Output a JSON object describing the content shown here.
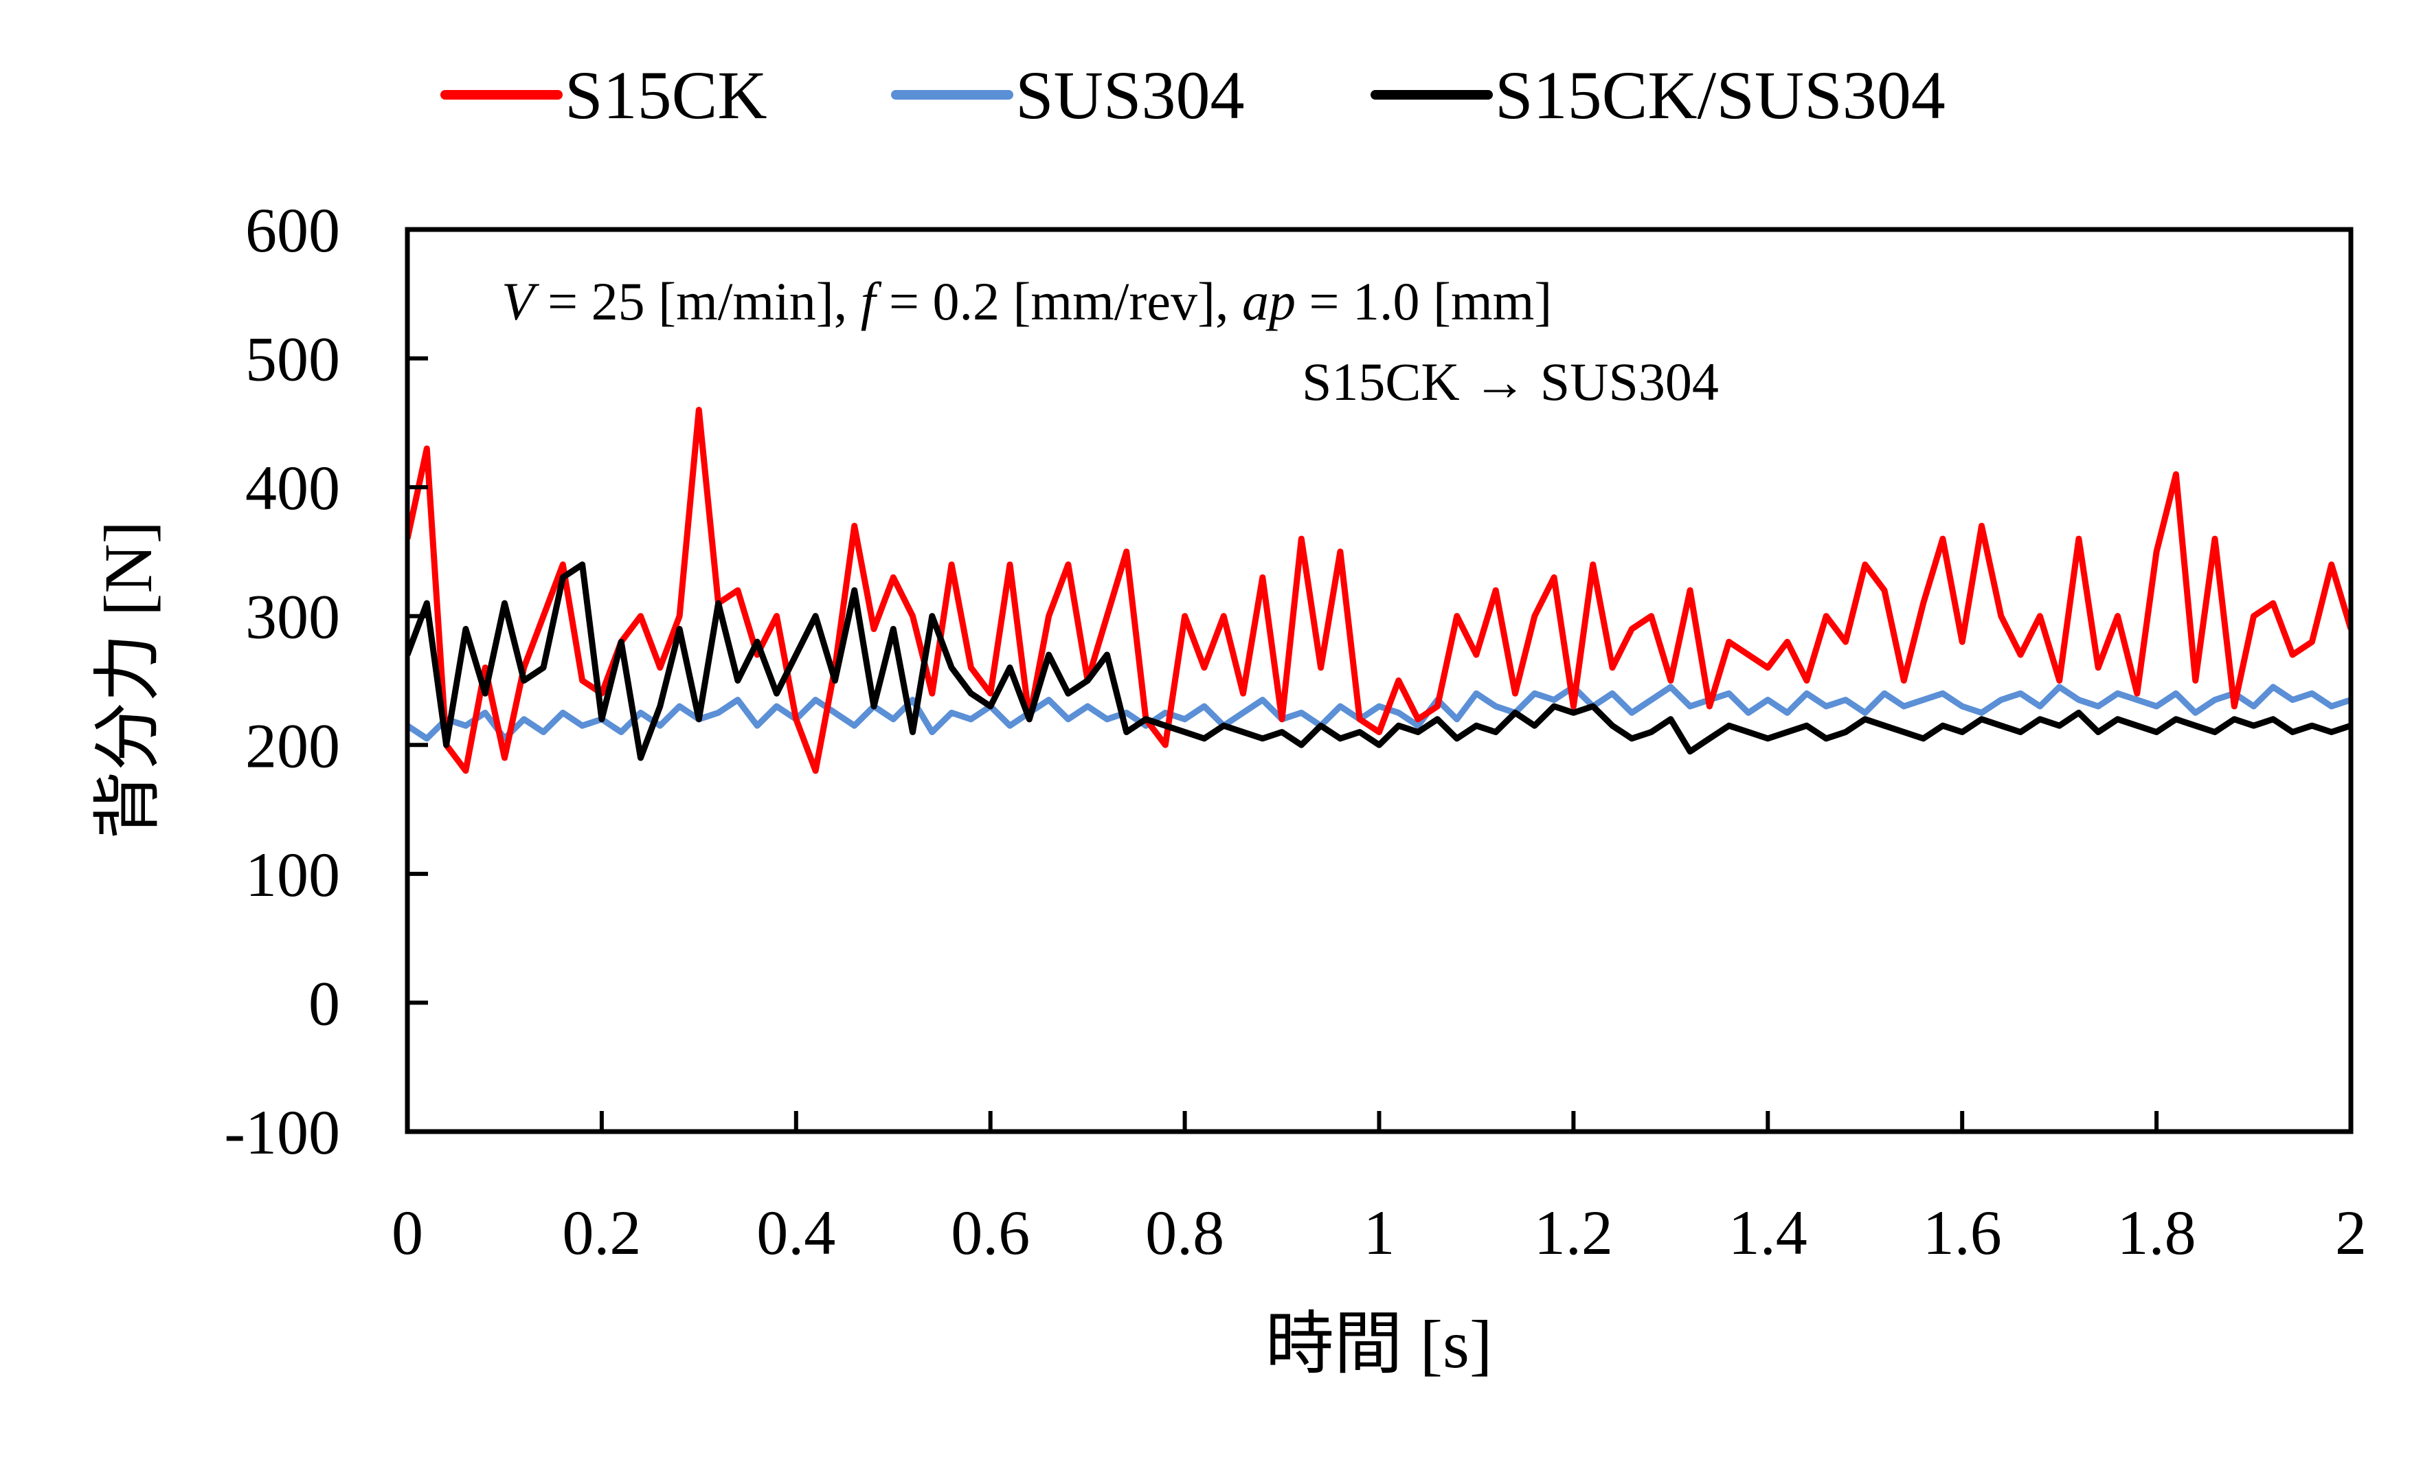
{
  "chart_data": {
    "type": "line",
    "title": "",
    "xlabel": "時間 [s]",
    "ylabel": "背分力 [N]",
    "xlim": [
      0,
      2
    ],
    "ylim": [
      -100,
      600
    ],
    "xticks": [
      0,
      0.2,
      0.4,
      0.6,
      0.8,
      1,
      1.2,
      1.4,
      1.6,
      1.8,
      2
    ],
    "xtick_labels": [
      "0",
      "0.2",
      "0.4",
      "0.6",
      "0.8",
      "1",
      "1.2",
      "1.4",
      "1.6",
      "1.8",
      "2"
    ],
    "yticks": [
      -100,
      0,
      100,
      200,
      300,
      400,
      500,
      600
    ],
    "ytick_labels": [
      "-100",
      "0",
      "100",
      "200",
      "300",
      "400",
      "500",
      "600"
    ],
    "grid": false,
    "legend_position": "top",
    "annotations": {
      "conditions": {
        "V_sym": "V",
        "V_val": " = 25 [m/min], ",
        "f_sym": "f",
        "f_val": " = 0.2 [mm/rev], ",
        "ap_sym": "ap",
        "ap_val": " = 1.0 [mm]"
      },
      "direction": "S15CK → SUS304"
    },
    "x": [
      0,
      0.02,
      0.04,
      0.06,
      0.08,
      0.1,
      0.12,
      0.14,
      0.16,
      0.18,
      0.2,
      0.22,
      0.24,
      0.26,
      0.28,
      0.3,
      0.32,
      0.34,
      0.36,
      0.38,
      0.4,
      0.42,
      0.44,
      0.46,
      0.48,
      0.5,
      0.52,
      0.54,
      0.56,
      0.58,
      0.6,
      0.62,
      0.64,
      0.66,
      0.68,
      0.7,
      0.72,
      0.74,
      0.76,
      0.78,
      0.8,
      0.82,
      0.84,
      0.86,
      0.88,
      0.9,
      0.92,
      0.94,
      0.96,
      0.98,
      1,
      1.02,
      1.04,
      1.06,
      1.08,
      1.1,
      1.12,
      1.14,
      1.16,
      1.18,
      1.2,
      1.22,
      1.24,
      1.26,
      1.28,
      1.3,
      1.32,
      1.34,
      1.36,
      1.38,
      1.4,
      1.42,
      1.44,
      1.46,
      1.48,
      1.5,
      1.52,
      1.54,
      1.56,
      1.58,
      1.6,
      1.62,
      1.64,
      1.66,
      1.68,
      1.7,
      1.72,
      1.74,
      1.76,
      1.78,
      1.8,
      1.82,
      1.84,
      1.86,
      1.88,
      1.9,
      1.92,
      1.94,
      1.96,
      1.98,
      2
    ],
    "series": [
      {
        "name": "S15CK",
        "color": "#ff0000",
        "values": [
          360,
          430,
          200,
          180,
          260,
          190,
          260,
          300,
          340,
          250,
          240,
          280,
          300,
          260,
          300,
          460,
          310,
          320,
          270,
          300,
          220,
          180,
          260,
          370,
          290,
          330,
          300,
          240,
          340,
          260,
          240,
          340,
          220,
          300,
          340,
          250,
          300,
          350,
          220,
          200,
          300,
          260,
          300,
          240,
          330,
          220,
          360,
          260,
          350,
          220,
          210,
          250,
          220,
          230,
          300,
          270,
          320,
          240,
          300,
          330,
          230,
          340,
          260,
          290,
          300,
          250,
          320,
          230,
          280,
          270,
          260,
          280,
          250,
          300,
          280,
          340,
          320,
          250,
          310,
          360,
          280,
          370,
          300,
          270,
          300,
          250,
          360,
          260,
          300,
          240,
          350,
          410,
          250,
          360,
          230,
          300,
          310,
          270,
          280,
          340,
          290
        ]
      },
      {
        "name": "SUS304",
        "color": "#5b8fd6",
        "values": [
          215,
          205,
          220,
          215,
          225,
          205,
          220,
          210,
          225,
          215,
          220,
          210,
          225,
          215,
          230,
          220,
          225,
          235,
          215,
          230,
          220,
          235,
          225,
          215,
          230,
          220,
          235,
          210,
          225,
          220,
          230,
          215,
          225,
          235,
          220,
          230,
          220,
          225,
          215,
          225,
          220,
          230,
          215,
          225,
          235,
          220,
          225,
          215,
          230,
          220,
          230,
          225,
          215,
          235,
          220,
          240,
          230,
          225,
          240,
          235,
          245,
          230,
          240,
          225,
          235,
          245,
          230,
          235,
          240,
          225,
          235,
          225,
          240,
          230,
          235,
          225,
          240,
          230,
          235,
          240,
          230,
          225,
          235,
          240,
          230,
          245,
          235,
          230,
          240,
          235,
          230,
          240,
          225,
          235,
          240,
          230,
          245,
          235,
          240,
          230,
          235
        ]
      },
      {
        "name": "S15CK/SUS304",
        "color": "#000000",
        "values": [
          270,
          310,
          200,
          290,
          240,
          310,
          250,
          260,
          330,
          340,
          220,
          280,
          190,
          230,
          290,
          220,
          310,
          250,
          280,
          240,
          270,
          300,
          250,
          320,
          230,
          290,
          210,
          300,
          260,
          240,
          230,
          260,
          220,
          270,
          240,
          250,
          270,
          210,
          220,
          215,
          210,
          205,
          215,
          210,
          205,
          210,
          200,
          215,
          205,
          210,
          200,
          215,
          210,
          220,
          205,
          215,
          210,
          225,
          215,
          230,
          225,
          230,
          215,
          205,
          210,
          220,
          195,
          205,
          215,
          210,
          205,
          210,
          215,
          205,
          210,
          220,
          215,
          210,
          205,
          215,
          210,
          220,
          215,
          210,
          220,
          215,
          225,
          210,
          220,
          215,
          210,
          220,
          215,
          210,
          220,
          215,
          220,
          210,
          215,
          210,
          215
        ]
      }
    ]
  }
}
